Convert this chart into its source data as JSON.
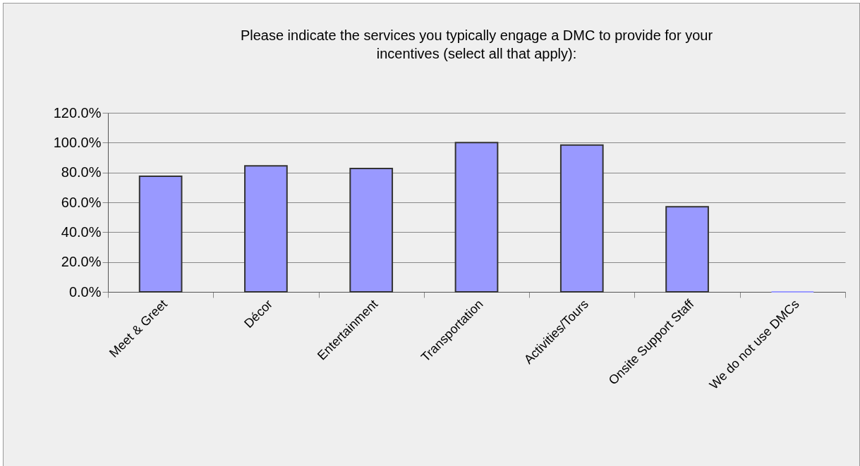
{
  "chart_data": {
    "type": "bar",
    "title": "Please indicate the services you typically engage a DMC to provide for your incentives (select all that apply):",
    "categories": [
      "Meet & Greet",
      "Décor",
      "Entertainment",
      "Transportation",
      "Activities/Tours",
      "Onsite Support Staff",
      "We do not use DMCs"
    ],
    "values": [
      77.5,
      84.4,
      82.7,
      100,
      98.4,
      57.0,
      0
    ],
    "color": "#9999ff",
    "ylim": [
      0,
      120
    ],
    "yticks": [
      {
        "value": 0,
        "label": "0.0%"
      },
      {
        "value": 20,
        "label": "20.0%"
      },
      {
        "value": 40,
        "label": "40.0%"
      },
      {
        "value": 60,
        "label": "60.0%"
      },
      {
        "value": 80,
        "label": "80.0%"
      },
      {
        "value": 100,
        "label": "100.0%"
      },
      {
        "value": 120,
        "label": "120.0%"
      }
    ],
    "grid": "y"
  }
}
